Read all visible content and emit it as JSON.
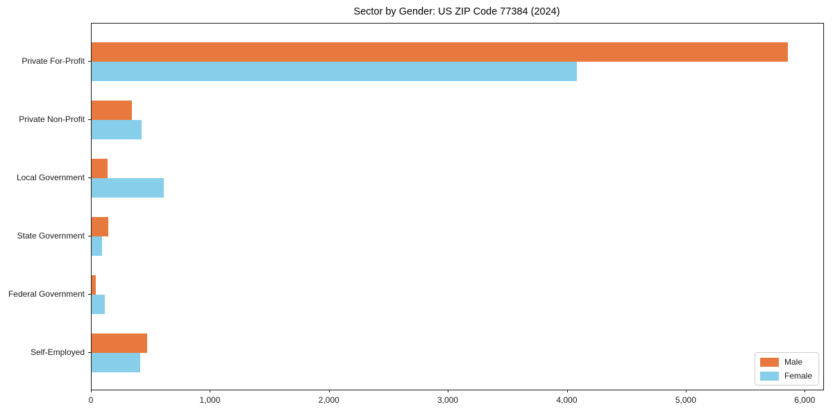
{
  "title": "Sector by Gender: US ZIP Code 77384 (2024)",
  "chart_data": {
    "type": "bar",
    "orientation": "horizontal",
    "title": "Sector by Gender: US ZIP Code 77384 (2024)",
    "categories": [
      "Private For-Profit",
      "Private Non-Profit",
      "Local Government",
      "State Government",
      "Federal Government",
      "Self-Employed"
    ],
    "series": [
      {
        "name": "Male",
        "color": "#E8793E",
        "values": [
          5850,
          340,
          135,
          140,
          35,
          465
        ]
      },
      {
        "name": "Female",
        "color": "#87CEEB",
        "values": [
          4080,
          420,
          605,
          90,
          110,
          410
        ]
      }
    ],
    "xlabel": "",
    "ylabel": "",
    "xlim": [
      0,
      6150
    ],
    "x_ticks": [
      0,
      1000,
      2000,
      3000,
      4000,
      5000,
      6000
    ],
    "x_tick_labels": [
      "0",
      "1,000",
      "2,000",
      "3,000",
      "4,000",
      "5,000",
      "6,000"
    ],
    "grid": false,
    "legend": {
      "position": "lower right",
      "entries": [
        "Male",
        "Female"
      ]
    },
    "colors": {
      "background": "#ffffff",
      "axis": "#1a1a1a",
      "male": "#E8793E",
      "female": "#87CEEB"
    }
  }
}
